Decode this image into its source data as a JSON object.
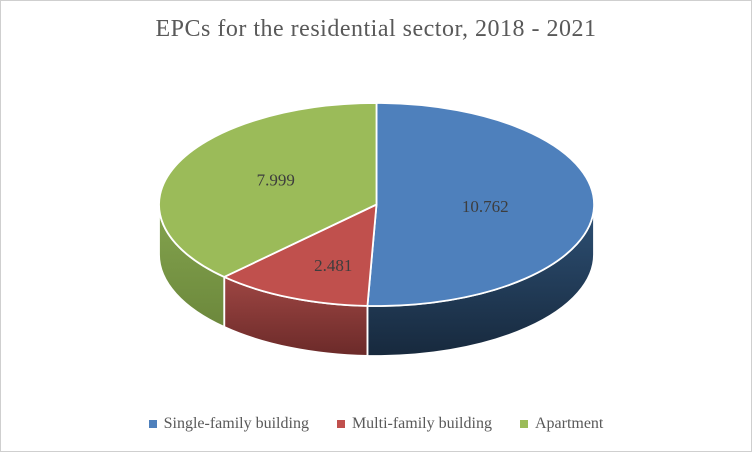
{
  "window": {
    "background": "#FFFFFF",
    "border_color": "#CFCFCF"
  },
  "chart_data": {
    "type": "pie",
    "effect": "3d",
    "title": "EPCs for the residential sector, 2018 - 2021",
    "categories": [
      "Single-family building",
      "Multi-family building",
      "Apartment"
    ],
    "values": [
      10762,
      2481,
      7999
    ],
    "data_labels": [
      "10.762",
      "2.481",
      "7.999"
    ],
    "start_angle_deg": 0,
    "direction": "clockwise",
    "legend_position": "bottom",
    "grid": "off",
    "colors": {
      "title_text": "#595959",
      "label_text": "#3D3D3D",
      "legend_text": "#595959",
      "slice_border": "#FFFFFF",
      "slices": [
        {
          "name": "Single-family building",
          "top": "#4E80BC",
          "side_light": "#2E5176",
          "side_dark": "#17293D"
        },
        {
          "name": "Multi-family building",
          "top": "#C0504D",
          "side_light": "#9E4643",
          "side_dark": "#6B2A29"
        },
        {
          "name": "Apartment",
          "top": "#9BBB59",
          "side_light": "#84A44E",
          "side_dark": "#6C883C"
        }
      ]
    }
  }
}
